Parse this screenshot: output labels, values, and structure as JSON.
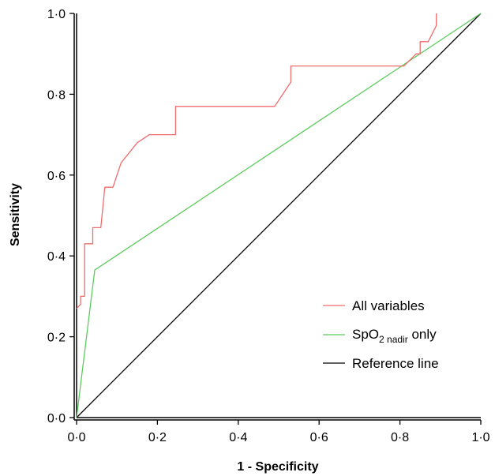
{
  "chart_data": {
    "type": "line",
    "title": "",
    "xlabel": "1 - Specificity",
    "ylabel": "Sensitivity",
    "xlim": [
      0,
      1
    ],
    "ylim": [
      0,
      1
    ],
    "x_ticks": [
      "0·0",
      "0·2",
      "0·4",
      "0·6",
      "0·8",
      "1·0"
    ],
    "y_ticks": [
      "0·0",
      "0·2",
      "0·4",
      "0·6",
      "0·8",
      "1·0"
    ],
    "grid": false,
    "legend_position": "bottom-right",
    "series": [
      {
        "name": "All variables",
        "color": "#f06c6c",
        "points": [
          [
            0,
            0.27
          ],
          [
            0.01,
            0.28
          ],
          [
            0.01,
            0.3
          ],
          [
            0.02,
            0.3
          ],
          [
            0.02,
            0.43
          ],
          [
            0.04,
            0.43
          ],
          [
            0.04,
            0.47
          ],
          [
            0.06,
            0.47
          ],
          [
            0.07,
            0.57
          ],
          [
            0.09,
            0.57
          ],
          [
            0.11,
            0.63
          ],
          [
            0.15,
            0.68
          ],
          [
            0.18,
            0.7
          ],
          [
            0.245,
            0.7
          ],
          [
            0.245,
            0.77
          ],
          [
            0.49,
            0.77
          ],
          [
            0.53,
            0.83
          ],
          [
            0.53,
            0.87
          ],
          [
            0.81,
            0.87
          ],
          [
            0.84,
            0.9
          ],
          [
            0.85,
            0.9
          ],
          [
            0.85,
            0.93
          ],
          [
            0.87,
            0.93
          ],
          [
            0.89,
            0.97
          ],
          [
            0.89,
            1.0
          ]
        ]
      },
      {
        "name_main": "SpO",
        "name_sub": "2 nadir",
        "name_tail": " only",
        "color": "#5ecb5e",
        "points": [
          [
            0,
            0
          ],
          [
            0.045,
            0.365
          ],
          [
            1,
            1
          ]
        ]
      },
      {
        "name": "Reference line",
        "color": "#000000",
        "points": [
          [
            0,
            0
          ],
          [
            1,
            1
          ]
        ]
      }
    ]
  }
}
